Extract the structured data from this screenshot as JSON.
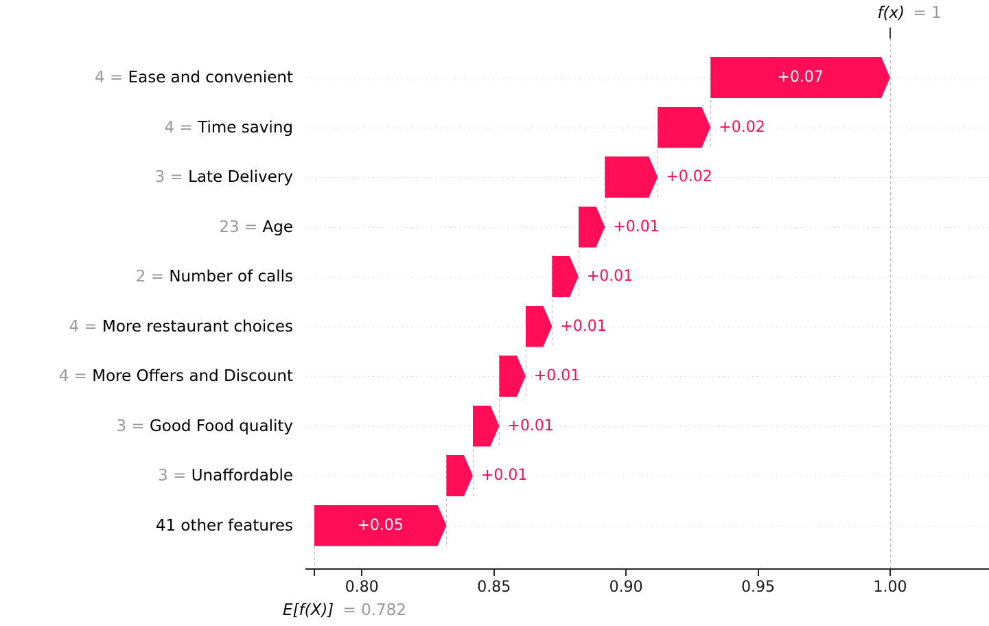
{
  "figure": {
    "fx_label_math": "f(x)",
    "fx_label_value": "= 1",
    "base_label_math": "E[f(X)]",
    "base_label_value": "= 0.782"
  },
  "chart_data": {
    "type": "bar",
    "variant": "shap-waterfall",
    "title": "",
    "xlabel": "",
    "ylabel": "",
    "base_value": 0.782,
    "final_value": 1.0,
    "bar_color": "#ff0d57",
    "positive_label_color": "#ff0d57",
    "x_ticks": [
      "0.80",
      "0.85",
      "0.90",
      "0.95",
      "1.00"
    ],
    "x_tick_values": [
      0.8,
      0.85,
      0.9,
      0.95,
      1.0
    ],
    "grid": "dotted-horizontal-row-lines",
    "legend": "none",
    "rows": [
      {
        "feature_value": "4",
        "feature": "Ease and convenient",
        "shap": 0.07,
        "label": "+0.07"
      },
      {
        "feature_value": "4",
        "feature": "Time saving",
        "shap": 0.02,
        "label": "+0.02"
      },
      {
        "feature_value": "3",
        "feature": "Late Delivery",
        "shap": 0.02,
        "label": "+0.02"
      },
      {
        "feature_value": "23",
        "feature": "Age",
        "shap": 0.01,
        "label": "+0.01"
      },
      {
        "feature_value": "2",
        "feature": "Number of calls",
        "shap": 0.01,
        "label": "+0.01"
      },
      {
        "feature_value": "4",
        "feature": "More restaurant choices",
        "shap": 0.01,
        "label": "+0.01"
      },
      {
        "feature_value": "4",
        "feature": "More Offers and Discount",
        "shap": 0.01,
        "label": "+0.01"
      },
      {
        "feature_value": "3",
        "feature": "Good Food quality",
        "shap": 0.01,
        "label": "+0.01"
      },
      {
        "feature_value": "3",
        "feature": "Unaffordable",
        "shap": 0.01,
        "label": "+0.01"
      },
      {
        "feature_value": null,
        "feature": "41 other features",
        "shap": 0.05,
        "label": "+0.05"
      }
    ]
  }
}
